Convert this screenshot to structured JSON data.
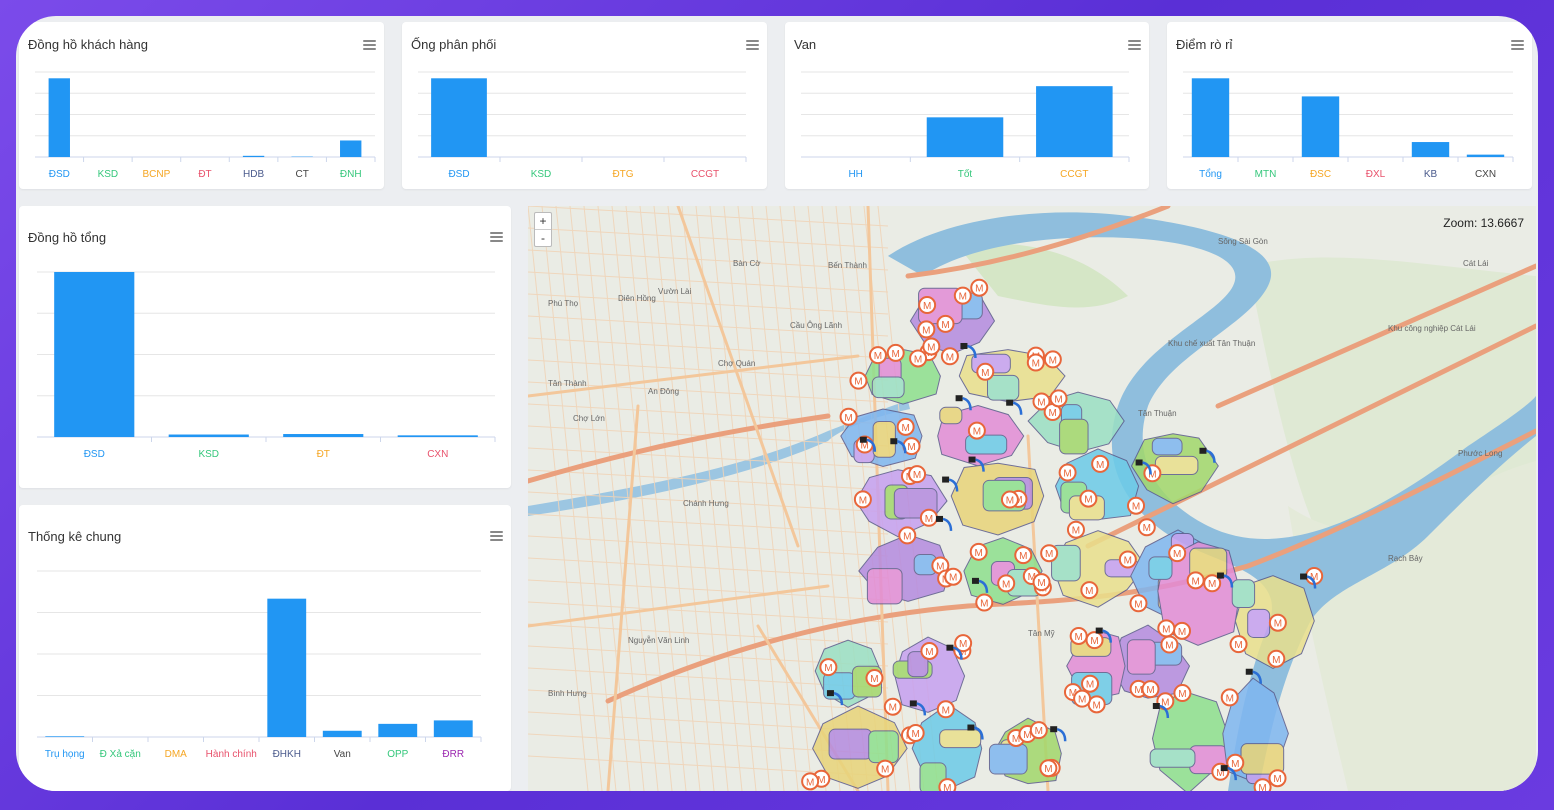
{
  "colors": {
    "bar": "#2196f3",
    "grid": "#e6e6e6",
    "river": "#8fbedd",
    "road_major": "#e99a7a",
    "road_minor": "#f4c89a",
    "marker": "#e8663a"
  },
  "map": {
    "zoom_text": "Zoom: 13.6667",
    "zoom_in": "+",
    "zoom_out": "-",
    "marker_letter": "M",
    "labels": [
      "Bến Thành",
      "Cầu Ông Lãnh",
      "Chợ Quán",
      "An Đông",
      "Chợ Lớn",
      "Chánh Hưng",
      "Bình Hưng",
      "Tân Thuận",
      "Tân Mỹ",
      "Phước Long",
      "Rạch Bảy",
      "Cát Lái",
      "Nguyễn Văn Linh",
      "Bàn Cờ",
      "Vườn Lài",
      "Diên Hồng",
      "Phú Thọ",
      "Tân Thành",
      "Khu chế xuất Tân Thuận",
      "Khu công nghiệp Cát Lái",
      "Sông Sài Gòn"
    ]
  },
  "chart_data": [
    {
      "id": "dong-ho-khach-hang",
      "type": "bar",
      "title": "Đồng hồ khách hàng",
      "categories": [
        "ĐSD",
        "KSD",
        "BCNP",
        "ĐT",
        "HDB",
        "CT",
        "ĐNH"
      ],
      "category_colors": [
        "#2196f3",
        "#34c77b",
        "#f5a623",
        "#e8516b",
        "#4a5a8c",
        "#444444",
        "#34c77b"
      ],
      "values": [
        100,
        0,
        0,
        0,
        1.5,
        0.5,
        21
      ],
      "ylim": [
        0,
        108
      ]
    },
    {
      "id": "ong-phan-phoi",
      "type": "bar",
      "title": "Ống phân phối",
      "categories": [
        "ĐSD",
        "KSD",
        "ĐTG",
        "CCGT"
      ],
      "category_colors": [
        "#2196f3",
        "#34c77b",
        "#f5a623",
        "#e8516b"
      ],
      "values": [
        100,
        0,
        0,
        0
      ],
      "ylim": [
        0,
        108
      ]
    },
    {
      "id": "van",
      "type": "bar",
      "title": "Van",
      "categories": [
        "HH",
        "Tốt",
        "CCGT"
      ],
      "category_colors": [
        "#2196f3",
        "#34c77b",
        "#f5a623"
      ],
      "values": [
        0,
        56,
        100
      ],
      "ylim": [
        0,
        120
      ]
    },
    {
      "id": "diem-ro-ri",
      "type": "bar",
      "title": "Điểm rò rỉ",
      "categories": [
        "Tổng",
        "MTN",
        "ĐSC",
        "ĐXL",
        "KB",
        "CXN"
      ],
      "category_colors": [
        "#2196f3",
        "#34c77b",
        "#f5a623",
        "#e8516b",
        "#4a5a8c",
        "#444444"
      ],
      "values": [
        100,
        0,
        77,
        0,
        19,
        3
      ],
      "ylim": [
        0,
        108
      ]
    },
    {
      "id": "dong-ho-tong",
      "type": "bar",
      "title": "Đồng hồ tổng",
      "categories": [
        "ĐSD",
        "KSD",
        "ĐT",
        "CXN"
      ],
      "category_colors": [
        "#2196f3",
        "#34c77b",
        "#f5a623",
        "#e8516b"
      ],
      "values": [
        100,
        1.5,
        1.8,
        1
      ],
      "ylim": [
        0,
        100
      ]
    },
    {
      "id": "thong-ke-chung",
      "type": "bar",
      "title": "Thống kê chung",
      "categories": [
        "Trụ họng",
        "Đ Xả cặn",
        "DMA",
        "Hành chính",
        "ĐHKH",
        "Van",
        "OPP",
        "ĐRR"
      ],
      "category_colors": [
        "#2196f3",
        "#34c77b",
        "#f5a623",
        "#e8516b",
        "#4a5a8c",
        "#444444",
        "#34c77b",
        "#9b27b0"
      ],
      "values": [
        0.5,
        0,
        0,
        0,
        100,
        4.5,
        9.5,
        12
      ],
      "ylim": [
        0,
        120
      ]
    }
  ]
}
